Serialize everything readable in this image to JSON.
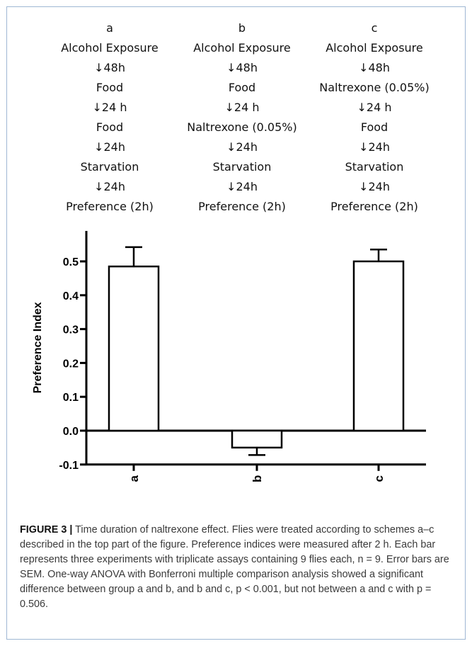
{
  "schemes": [
    {
      "label": "a",
      "steps": [
        "Alcohol Exposure",
        "↓48h",
        "Food",
        "↓24 h",
        "Food",
        "↓24h",
        "Starvation",
        "↓24h",
        "Preference (2h)"
      ]
    },
    {
      "label": "b",
      "steps": [
        "Alcohol Exposure",
        "↓48h",
        "Food",
        "↓24 h",
        "Naltrexone (0.05%)",
        "↓24h",
        "Starvation",
        "↓24h",
        "Preference (2h)"
      ]
    },
    {
      "label": "c",
      "steps": [
        "Alcohol Exposure",
        "↓48h",
        "Naltrexone (0.05%)",
        "↓24 h",
        "Food",
        "↓24h",
        "Starvation",
        "↓24h",
        "Preference (2h)"
      ]
    }
  ],
  "chart_data": {
    "type": "bar",
    "categories": [
      "a",
      "b",
      "c"
    ],
    "values": [
      0.485,
      -0.05,
      0.5
    ],
    "errors": [
      0.057,
      0.022,
      0.035
    ],
    "ylabel": "Preference Index",
    "ylim": [
      -0.1,
      0.55
    ],
    "yticks": [
      0.5,
      0.4,
      0.3,
      0.2,
      0.1,
      0.0,
      -0.1
    ],
    "ytick_labels": [
      "0.5",
      "0.4",
      "0.3",
      "0.2",
      "0.1",
      "0.0",
      "-0.1"
    ],
    "grid": false
  },
  "caption": {
    "lead": "FIGURE 3 |",
    "text": " Time duration of naltrexone effect. Flies were treated according to schemes a–c described in the top part of the figure. Preference indices were measured after 2 h. Each bar represents three experiments with triplicate assays containing 9 flies each, n = 9. Error bars are SEM. One-way ANOVA with Bonferroni multiple comparison analysis showed a significant difference between group a and b, and b and c, p < 0.001, but not between a and c with p = 0.506."
  }
}
